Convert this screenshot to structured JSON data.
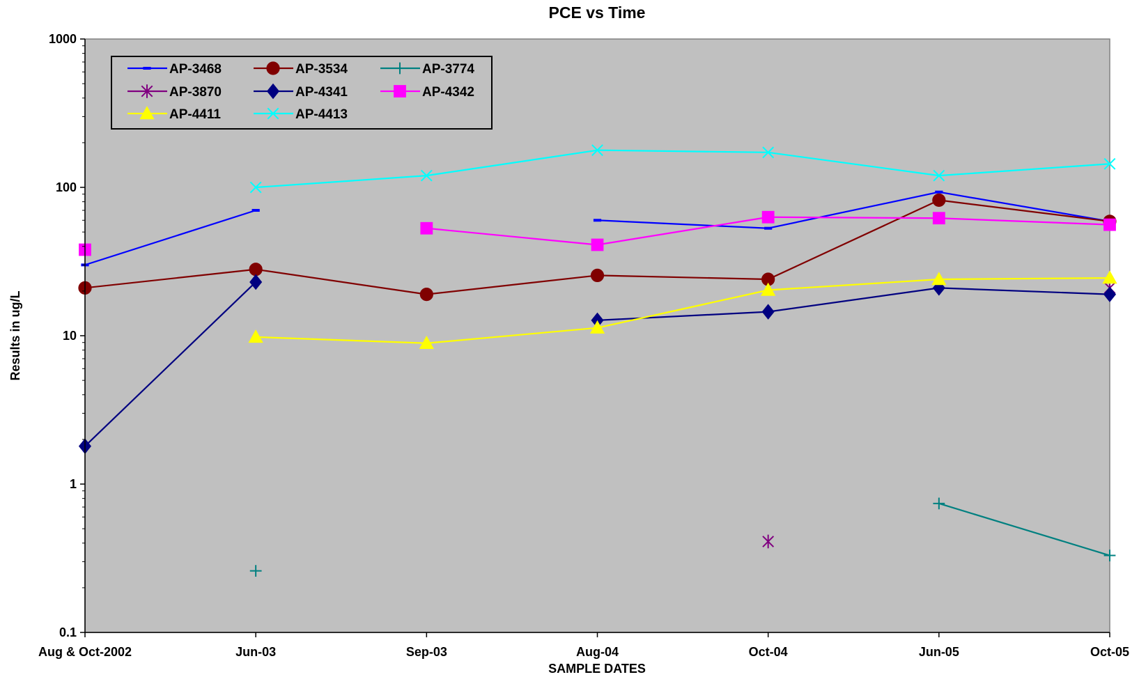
{
  "chart_data": {
    "type": "line",
    "title": "PCE vs Time",
    "xlabel": "SAMPLE DATES",
    "ylabel": "Results in ug/L",
    "yscale": "log",
    "ylim": [
      0.1,
      1000
    ],
    "yticks": [
      "0.1",
      "1",
      "10",
      "100",
      "1000"
    ],
    "grid": false,
    "legend_position": "top-left",
    "background_color": "#c0c0c0",
    "categories": [
      "Aug & Oct-2002",
      "Jun-03",
      "Sep-03",
      "Aug-04",
      "Oct-04",
      "Jun-05",
      "Oct-05"
    ],
    "series": [
      {
        "name": "AP-3468",
        "color": "#0000ff",
        "marker": "dash",
        "values": [
          30,
          70,
          null,
          60,
          53,
          93,
          59
        ]
      },
      {
        "name": "AP-3534",
        "color": "#800000",
        "marker": "circle",
        "values": [
          21,
          28,
          19,
          25.5,
          24,
          82,
          59
        ]
      },
      {
        "name": "AP-3774",
        "color": "#008080",
        "marker": "plus",
        "values": [
          null,
          0.26,
          null,
          null,
          null,
          0.74,
          0.33
        ]
      },
      {
        "name": "AP-3870",
        "color": "#800080",
        "marker": "star",
        "values": [
          null,
          null,
          null,
          null,
          0.41,
          null,
          21
        ]
      },
      {
        "name": "AP-4341",
        "color": "#000080",
        "marker": "diamond",
        "values": [
          1.8,
          23,
          null,
          12.7,
          14.5,
          21,
          19
        ]
      },
      {
        "name": "AP-4342",
        "color": "#ff00ff",
        "marker": "square",
        "values": [
          38,
          null,
          53,
          41,
          63,
          62,
          56
        ]
      },
      {
        "name": "AP-4411",
        "color": "#ffff00",
        "marker": "triangle",
        "values": [
          null,
          9.8,
          8.9,
          11.3,
          20.3,
          24,
          24.5
        ]
      },
      {
        "name": "AP-4413",
        "color": "#00ffff",
        "marker": "x",
        "values": [
          null,
          100,
          120,
          178,
          172,
          120,
          144
        ]
      }
    ]
  }
}
